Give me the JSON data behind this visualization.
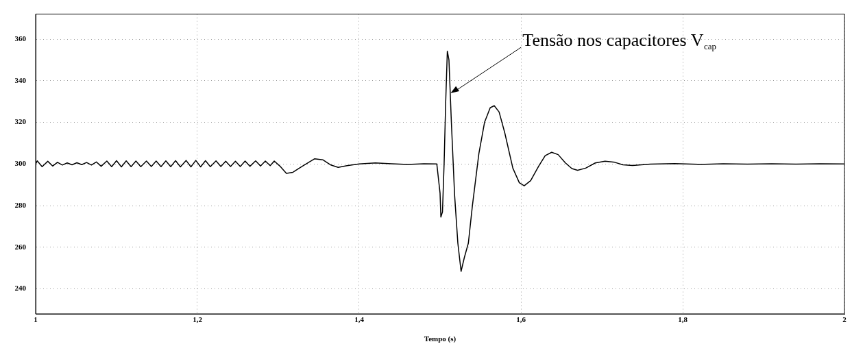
{
  "chart_data": {
    "type": "line",
    "xlabel": "Tempo (s)",
    "xlim": [
      1,
      2
    ],
    "xticks": [
      1,
      {
        "value": 1.2,
        "label": "1,2"
      },
      {
        "value": 1.4,
        "label": "1,4"
      },
      {
        "value": 1.6,
        "label": "1,6"
      },
      {
        "value": 1.8,
        "label": "1,8"
      },
      2
    ],
    "ylim": [
      228,
      372
    ],
    "yticks": [
      240,
      260,
      280,
      300,
      320,
      340,
      360
    ],
    "grid": true,
    "legend": false,
    "marker": "none",
    "line_style": "solid",
    "annotations": [
      {
        "text": "Tensão nos capacitores V$_{cap}$",
        "x": 1.513,
        "y": 334
      }
    ],
    "series": [
      {
        "color": "#000000",
        "x": [
          1.0,
          1.002,
          1.008,
          1.015,
          1.021,
          1.027,
          1.033,
          1.039,
          1.045,
          1.051,
          1.057,
          1.063,
          1.069,
          1.075,
          1.081,
          1.088,
          1.094,
          1.1,
          1.106,
          1.112,
          1.118,
          1.124,
          1.13,
          1.137,
          1.143,
          1.149,
          1.155,
          1.161,
          1.167,
          1.173,
          1.179,
          1.186,
          1.192,
          1.198,
          1.204,
          1.21,
          1.216,
          1.223,
          1.229,
          1.235,
          1.241,
          1.247,
          1.253,
          1.259,
          1.265,
          1.272,
          1.278,
          1.284,
          1.29,
          1.295,
          1.302,
          1.31,
          1.318,
          1.33,
          1.345,
          1.355,
          1.365,
          1.374,
          1.385,
          1.4,
          1.42,
          1.44,
          1.46,
          1.48,
          1.496,
          1.5,
          1.501,
          1.503,
          1.505,
          1.507,
          1.509,
          1.511,
          1.514,
          1.518,
          1.522,
          1.526,
          1.53,
          1.535,
          1.54,
          1.548,
          1.555,
          1.562,
          1.567,
          1.573,
          1.58,
          1.59,
          1.598,
          1.604,
          1.612,
          1.622,
          1.63,
          1.638,
          1.646,
          1.655,
          1.663,
          1.67,
          1.68,
          1.692,
          1.704,
          1.716,
          1.726,
          1.738,
          1.76,
          1.79,
          1.82,
          1.85,
          1.88,
          1.91,
          1.94,
          1.97,
          2.0
        ],
        "values": [
          300,
          301.5,
          298.7,
          301.3,
          299,
          300.8,
          299.5,
          300.5,
          299.6,
          300.6,
          299.7,
          300.7,
          299.5,
          301,
          298.9,
          301.4,
          298.7,
          301.6,
          298.6,
          301.5,
          298.7,
          301.4,
          298.7,
          301.4,
          298.8,
          301.4,
          298.7,
          301.5,
          298.7,
          301.6,
          298.6,
          301.7,
          298.6,
          301.7,
          298.6,
          301.6,
          298.7,
          301.5,
          298.8,
          301.3,
          298.8,
          301.3,
          298.8,
          301.4,
          298.9,
          301.5,
          299,
          301.4,
          299.2,
          301.4,
          299,
          295.5,
          296,
          299,
          302.5,
          302,
          299.5,
          298.4,
          299.2,
          300,
          300.5,
          300.1,
          299.8,
          300.1,
          300,
          286,
          274.5,
          277,
          300,
          330,
          354.2,
          350,
          320,
          285,
          262,
          248.4,
          255,
          262,
          280,
          305,
          320,
          327,
          328,
          325,
          315,
          298,
          291,
          289.5,
          292,
          299,
          304,
          305.6,
          304.5,
          300.5,
          297.8,
          297,
          298,
          300.5,
          301.3,
          300.8,
          299.6,
          299.3,
          299.9,
          300.2,
          299.8,
          300.1,
          299.9,
          300.1,
          299.9,
          300.1,
          300
        ]
      }
    ]
  }
}
